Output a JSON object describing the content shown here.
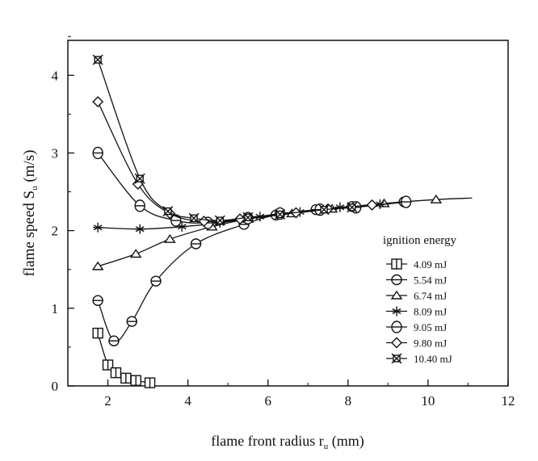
{
  "chart_data": {
    "type": "line",
    "title": "",
    "xlabel": "flame front radius r",
    "xlabel_sub": "u",
    "xlabel_unit": " (mm)",
    "ylabel": "flame speed S",
    "ylabel_sub": "u",
    "ylabel_unit": " (m/s)",
    "xlim": [
      1,
      12
    ],
    "ylim": [
      0,
      4.45
    ],
    "xticks": [
      2,
      4,
      6,
      8,
      10,
      12
    ],
    "yticks": [
      0,
      1,
      2,
      3,
      4
    ],
    "grid": false,
    "legend_title": "ignition energy",
    "legend_position": "right",
    "series": [
      {
        "name": "4.09 mJ",
        "marker": "square",
        "points": [
          [
            1.75,
            0.68
          ],
          [
            2.0,
            0.27
          ],
          [
            2.2,
            0.17
          ],
          [
            2.45,
            0.1
          ],
          [
            2.7,
            0.07
          ],
          [
            3.05,
            0.04
          ]
        ]
      },
      {
        "name": "5.54 mJ",
        "marker": "circle",
        "points": [
          [
            1.75,
            1.1
          ],
          [
            2.15,
            0.58
          ],
          [
            2.6,
            0.83
          ],
          [
            3.2,
            1.35
          ],
          [
            4.2,
            1.83
          ],
          [
            5.4,
            2.08
          ],
          [
            6.2,
            2.2
          ],
          [
            7.2,
            2.27
          ],
          [
            8.1,
            2.31
          ],
          [
            9.4,
            2.37
          ]
        ]
      },
      {
        "name": "6.74 mJ",
        "marker": "triangle",
        "points": [
          [
            1.75,
            1.54
          ],
          [
            2.7,
            1.7
          ],
          [
            3.55,
            1.89
          ],
          [
            4.6,
            2.05
          ],
          [
            5.5,
            2.15
          ],
          [
            6.6,
            2.22
          ],
          [
            7.6,
            2.28
          ],
          [
            8.9,
            2.35
          ],
          [
            10.2,
            2.4
          ]
        ],
        "line_end": [
          11.1,
          2.42
        ]
      },
      {
        "name": "8.09 mJ",
        "marker": "asterisk",
        "points": [
          [
            1.75,
            2.04
          ],
          [
            2.8,
            2.02
          ],
          [
            3.85,
            2.05
          ],
          [
            4.8,
            2.1
          ],
          [
            5.8,
            2.18
          ],
          [
            6.8,
            2.24
          ],
          [
            7.8,
            2.3
          ],
          [
            8.8,
            2.34
          ]
        ]
      },
      {
        "name": "9.05 mJ",
        "marker": "hexagon",
        "points": [
          [
            1.75,
            3.0
          ],
          [
            2.8,
            2.32
          ],
          [
            3.7,
            2.13
          ],
          [
            4.5,
            2.1
          ],
          [
            5.5,
            2.16
          ],
          [
            6.3,
            2.22
          ],
          [
            7.3,
            2.27
          ],
          [
            8.2,
            2.3
          ],
          [
            9.45,
            2.37
          ]
        ]
      },
      {
        "name": "9.80 mJ",
        "marker": "diamond",
        "points": [
          [
            1.75,
            3.66
          ],
          [
            2.75,
            2.6
          ],
          [
            3.55,
            2.22
          ],
          [
            4.4,
            2.12
          ],
          [
            5.3,
            2.15
          ],
          [
            6.7,
            2.23
          ],
          [
            7.5,
            2.28
          ],
          [
            8.6,
            2.33
          ]
        ]
      },
      {
        "name": "10.40 mJ",
        "marker": "xbox",
        "points": [
          [
            1.75,
            4.2
          ],
          [
            2.8,
            2.67
          ],
          [
            3.5,
            2.25
          ],
          [
            4.15,
            2.16
          ],
          [
            4.8,
            2.13
          ],
          [
            5.5,
            2.17
          ],
          [
            6.3,
            2.21
          ],
          [
            7.4,
            2.27
          ],
          [
            8.1,
            2.3
          ]
        ]
      }
    ]
  }
}
